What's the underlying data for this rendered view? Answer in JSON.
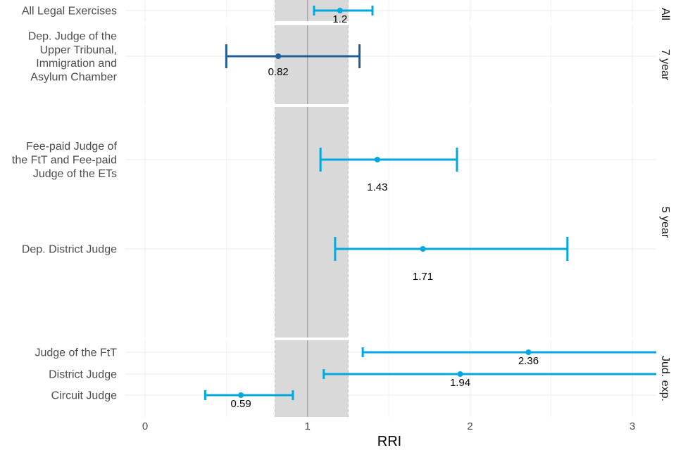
{
  "chart_data": {
    "type": "forest",
    "xlabel": "RRI",
    "xlim": [
      -0.3,
      3.15
    ],
    "x_ticks": [
      0,
      1,
      2,
      3
    ],
    "x_tick_labels": [
      "0",
      "1",
      "2",
      "3"
    ],
    "reference_line": 1,
    "reference_band": [
      0.8,
      1.25
    ],
    "colors": {
      "light": "#00a8e1",
      "dark": "#1f5f9e",
      "band": "#d9d9d9",
      "grid": "#ebebeb",
      "refline": "#a6a6a6"
    },
    "facets": [
      {
        "label": "All",
        "rows": [
          {
            "label_lines": [
              "All Legal Exercises"
            ],
            "estimate": 1.2,
            "lower": 1.04,
            "upper": 1.4,
            "display": "1.2",
            "color": "light"
          }
        ]
      },
      {
        "label": "7 year",
        "rows": [
          {
            "label_lines": [
              "Dep. Judge of the",
              "Upper Tribunal,",
              "Immigration and",
              "Asylum Chamber"
            ],
            "estimate": 0.82,
            "lower": 0.5,
            "upper": 1.32,
            "display": "0.82",
            "color": "dark"
          }
        ]
      },
      {
        "label": "5 year",
        "rows": [
          {
            "label_lines": [
              "Fee-paid Judge of",
              "the FtT and Fee-paid",
              "Judge of the ETs"
            ],
            "estimate": 1.43,
            "lower": 1.08,
            "upper": 1.92,
            "display": "1.43",
            "color": "light"
          },
          {
            "label_lines": [
              "Dep. District Judge"
            ],
            "estimate": 1.71,
            "lower": 1.17,
            "upper": 2.6,
            "display": "1.71",
            "color": "light"
          }
        ]
      },
      {
        "label": "Jud. exp.",
        "rows": [
          {
            "label_lines": [
              "Judge of the FtT"
            ],
            "estimate": 2.36,
            "lower": 1.34,
            "upper": 3.2,
            "display": "2.36",
            "color": "light"
          },
          {
            "label_lines": [
              "District Judge"
            ],
            "estimate": 1.94,
            "lower": 1.1,
            "upper": 3.2,
            "display": "1.94",
            "color": "light"
          },
          {
            "label_lines": [
              "Circuit Judge"
            ],
            "estimate": 0.59,
            "lower": 0.37,
            "upper": 0.91,
            "display": "0.59",
            "color": "light"
          }
        ]
      }
    ]
  }
}
